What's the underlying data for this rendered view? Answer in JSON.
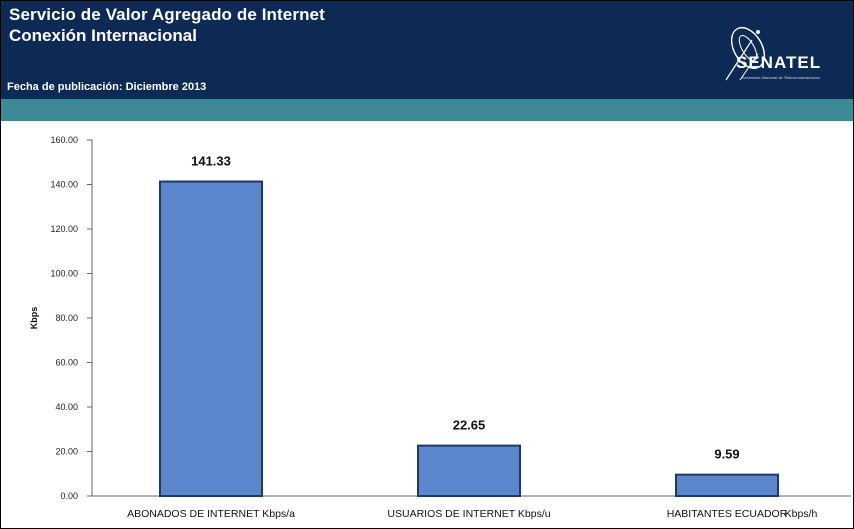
{
  "header": {
    "title_line1": "Servicio de Valor Agregado de Internet",
    "title_line2": "Conexión Internacional",
    "publication_date": "Fecha de publicación: Diciembre 2013",
    "logo_text": "SENATEL",
    "logo_subtext": "Secretaría Nacional de Telecomunicaciones"
  },
  "colors": {
    "header_bg": "#0d2a55",
    "band": "#3d8a96",
    "bar_fill": "#5b86cc",
    "bar_stroke": "#1e3a66"
  },
  "chart_data": {
    "type": "bar",
    "categories": [
      "ABONADOS DE INTERNET Kbps/a",
      "USUARIOS DE INTERNET Kbps/u",
      "HABITANTES ECUADOR"
    ],
    "values": [
      141.33,
      22.65,
      9.59
    ],
    "value_labels": [
      "141.33",
      "22.65",
      "9.59"
    ],
    "ylabel": "Kbps",
    "extra_axis_note": "Kbps/h",
    "ylim": [
      0,
      160
    ],
    "yticks": [
      0,
      20,
      40,
      60,
      80,
      100,
      120,
      140,
      160
    ],
    "ytick_labels": [
      "0.00",
      "20.00",
      "40.00",
      "60.00",
      "80.00",
      "100.00",
      "120.00",
      "140.00",
      "160.00"
    ],
    "grid": false,
    "legend": "none"
  }
}
